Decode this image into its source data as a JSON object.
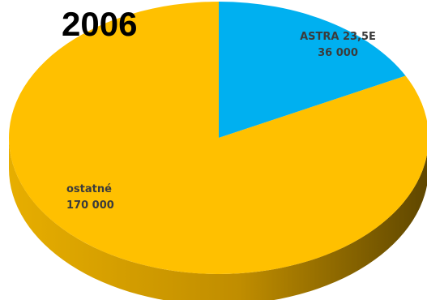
{
  "chart_data": {
    "type": "pie",
    "style": "3d",
    "title": "2006",
    "slices": [
      {
        "label": "ASTRA 23,5E",
        "value": 36000,
        "value_label": "36 000",
        "color": "#00b0f0"
      },
      {
        "label": "ostatné",
        "value": 170000,
        "value_label": "170 000",
        "color": "#ffc000"
      }
    ],
    "legend": "none"
  }
}
